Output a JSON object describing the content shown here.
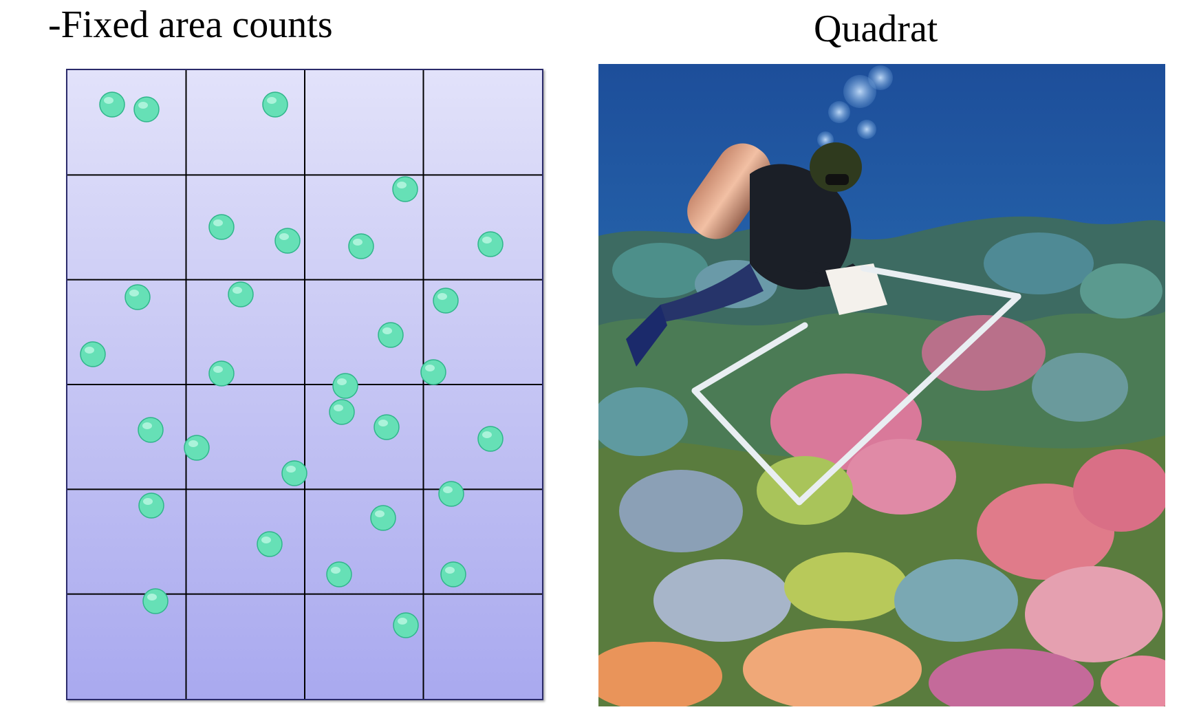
{
  "left": {
    "title": "-Fixed area counts",
    "grid": {
      "columns": 4,
      "rows": 6
    },
    "colors": {
      "grid_fill_top": "#e2e2fa",
      "grid_fill_bottom": "#a9a9ef",
      "grid_lines": "#000000",
      "dot_fill": "#66e0b6",
      "dot_stroke": "#2fb58a"
    }
  },
  "right": {
    "title": "Quadrat",
    "photo_description_icon": "diver-with-quadrat-over-coral-reef-photo"
  }
}
